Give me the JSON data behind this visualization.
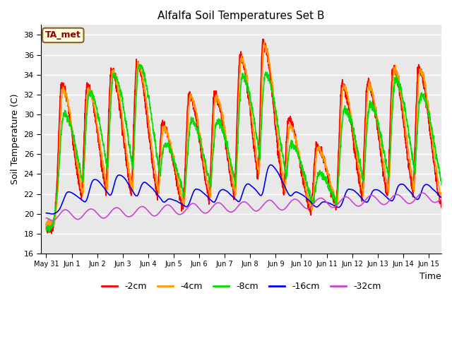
{
  "title": "Alfalfa Soil Temperatures Set B",
  "xlabel": "Time",
  "ylabel": "Soil Temperature (C)",
  "ylim": [
    16,
    39
  ],
  "xlim": [
    -0.2,
    15.5
  ],
  "bg_color": "#e8e8e8",
  "grid_color": "white",
  "series": {
    "-2cm": {
      "color": "#ff0000",
      "lw": 1.2
    },
    "-4cm": {
      "color": "#ff9900",
      "lw": 1.2
    },
    "-8cm": {
      "color": "#00dd00",
      "lw": 1.2
    },
    "-16cm": {
      "color": "#0000ee",
      "lw": 1.2
    },
    "-32cm": {
      "color": "#cc44cc",
      "lw": 1.2
    }
  },
  "yticks": [
    16,
    18,
    20,
    22,
    24,
    26,
    28,
    30,
    32,
    34,
    36,
    38
  ],
  "xtick_positions": [
    0,
    1,
    2,
    3,
    4,
    5,
    6,
    7,
    8,
    9,
    10,
    11,
    12,
    13,
    14,
    15
  ],
  "xticklabels": [
    "May 31",
    "Jun 1",
    "Jun 2",
    "Jun 3",
    "Jun 4",
    "Jun 5",
    "Jun 6",
    "Jun 7",
    "Jun 8",
    "Jun 9",
    "Jun 10",
    "Jun 11",
    "Jun 12",
    "Jun 13",
    "Jun 14",
    "Jun 15"
  ],
  "annotation_text": "TA_met",
  "legend_labels": [
    "-2cm",
    "-4cm",
    "-8cm",
    "-16cm",
    "-32cm"
  ]
}
